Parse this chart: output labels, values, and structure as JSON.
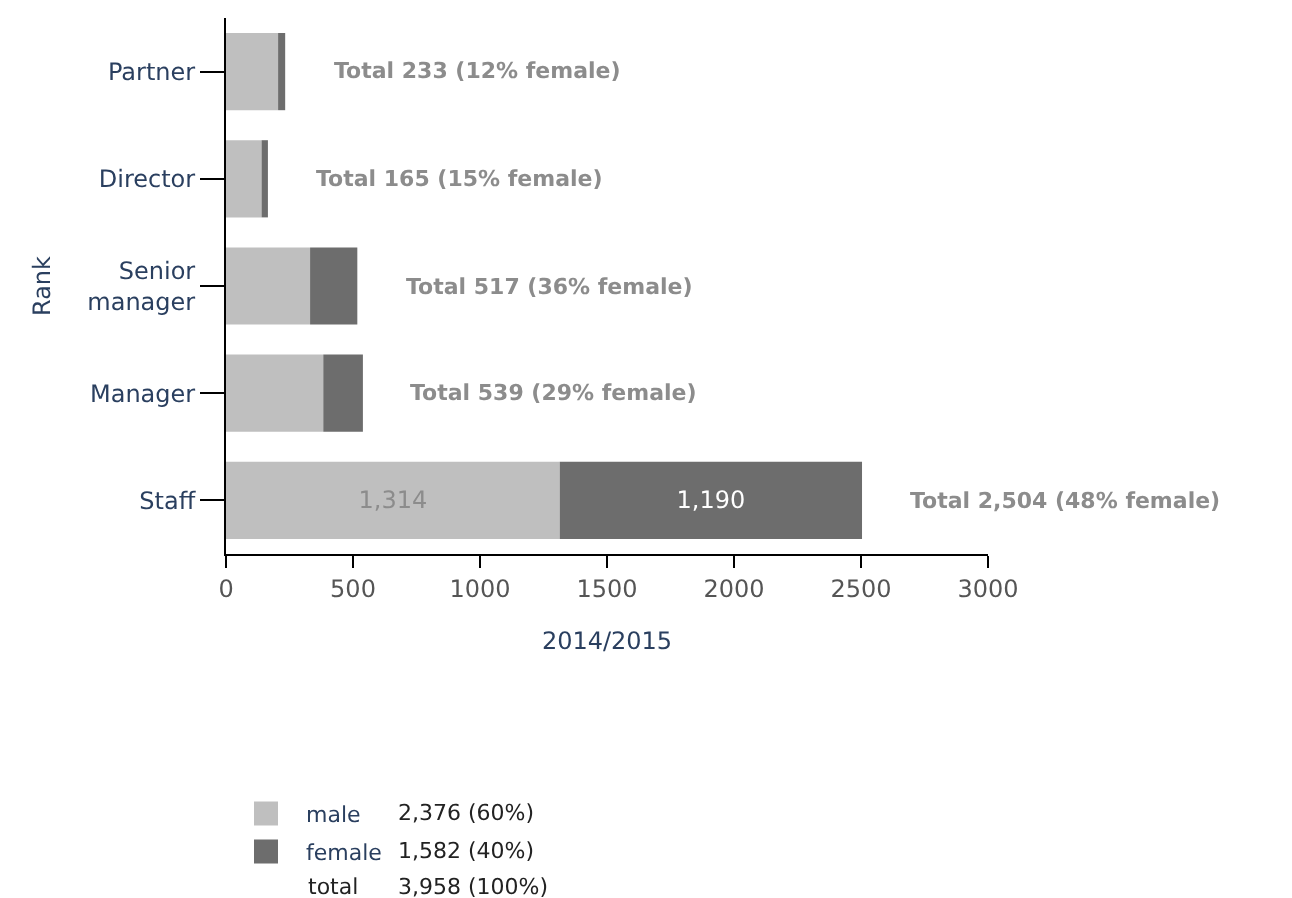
{
  "chart_data": {
    "type": "bar",
    "orientation": "horizontal",
    "stacked": true,
    "categories": [
      "Partner",
      "Director",
      "Senior manager",
      "Manager",
      "Staff"
    ],
    "series": [
      {
        "name": "male",
        "color": "#bfbfbf",
        "values": [
          205,
          140,
          331,
          383,
          1314
        ],
        "value_labels": [
          null,
          null,
          null,
          null,
          "1,314"
        ]
      },
      {
        "name": "female",
        "color": "#6d6d6d",
        "values": [
          28,
          25,
          186,
          156,
          1190
        ],
        "value_labels": [
          null,
          null,
          null,
          null,
          "1,190"
        ]
      }
    ],
    "totals": [
      "Total 233 (12% female)",
      "Total 165 (15% female)",
      "Total 517 (36% female)",
      "Total 539 (29% female)",
      "Total 2,504 (48% female)"
    ],
    "xlabel": "2014/2015",
    "ylabel": "Rank",
    "xlim": [
      0,
      3000
    ],
    "xticks": [
      0,
      500,
      1000,
      1500,
      2000,
      2500,
      3000
    ],
    "legend": "bottom left",
    "annotations": [
      "2,376 (60%)",
      "1,582 (40%)",
      "total",
      "3,958 (100%)"
    ]
  }
}
